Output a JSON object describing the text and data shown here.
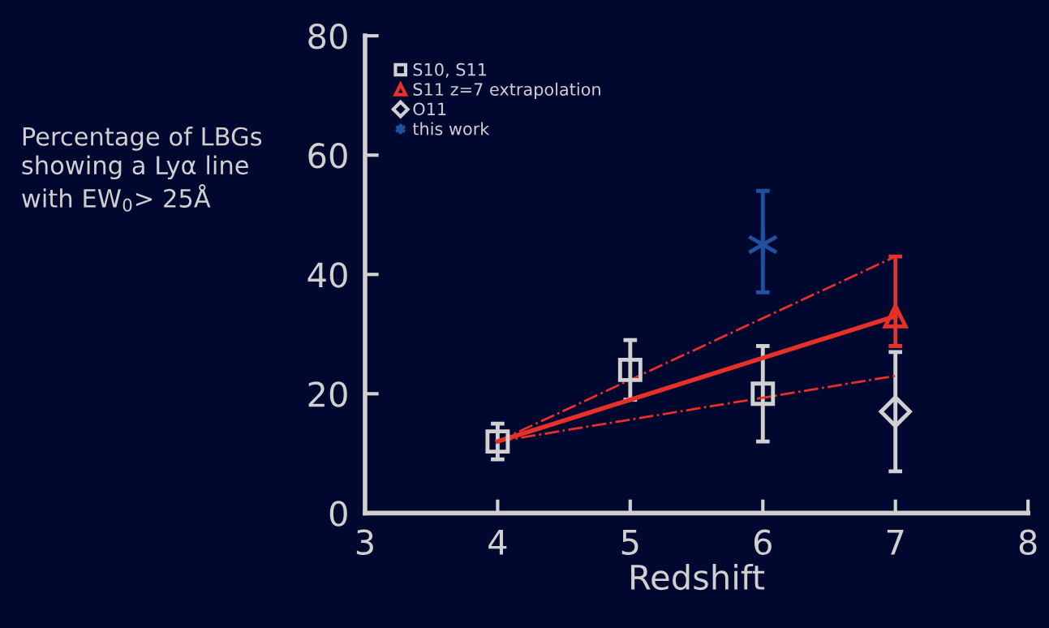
{
  "chart_data": {
    "type": "scatter",
    "xlabel": "Redshift",
    "ylabel": "Percentage of LBGs\nshowing a Lyα line\nwith EW$_{0}$> 25Å",
    "xlim": [
      3,
      8
    ],
    "xticks": [
      3,
      4,
      5,
      6,
      7,
      8
    ],
    "ylim": [
      0,
      80
    ],
    "yticks": [
      0,
      20,
      40,
      60,
      80
    ],
    "grid": false,
    "legend": "top left",
    "series": [
      {
        "type": "line",
        "x": [
          4,
          7
        ],
        "values": [
          12,
          43
        ],
        "color": "#e8302a",
        "line_style": "dashdot",
        "marker": "none"
      },
      {
        "type": "line",
        "x": [
          4,
          7
        ],
        "values": [
          12,
          23
        ],
        "color": "#e8302a",
        "line_style": "dashdot",
        "marker": "none"
      },
      {
        "type": "line",
        "x": [
          4,
          7
        ],
        "values": [
          12,
          33
        ],
        "color": "#e8302a",
        "line_style": "solid",
        "marker": "none"
      },
      {
        "name": "S10, S11",
        "x": [
          4,
          5,
          6
        ],
        "values": [
          12,
          24,
          20
        ],
        "errors": [
          [
            9,
            15
          ],
          [
            19,
            29
          ],
          [
            12,
            28
          ]
        ],
        "color": "#d0d0d0",
        "marker": "square"
      },
      {
        "name": "S11 z=7 extrapolation",
        "x": [
          7
        ],
        "values": [
          33
        ],
        "errors": [
          [
            28,
            43
          ]
        ],
        "color": "#e8302a",
        "marker": "triangle"
      },
      {
        "name": "O11",
        "x": [
          7
        ],
        "values": [
          17
        ],
        "errors": [
          [
            7,
            27
          ]
        ],
        "color": "#d0d0d0",
        "marker": "diamond"
      },
      {
        "name": "this work",
        "x": [
          6
        ],
        "values": [
          45
        ],
        "errors": [
          [
            37,
            54
          ]
        ],
        "color": "#2050a0",
        "marker": "cross"
      }
    ]
  }
}
